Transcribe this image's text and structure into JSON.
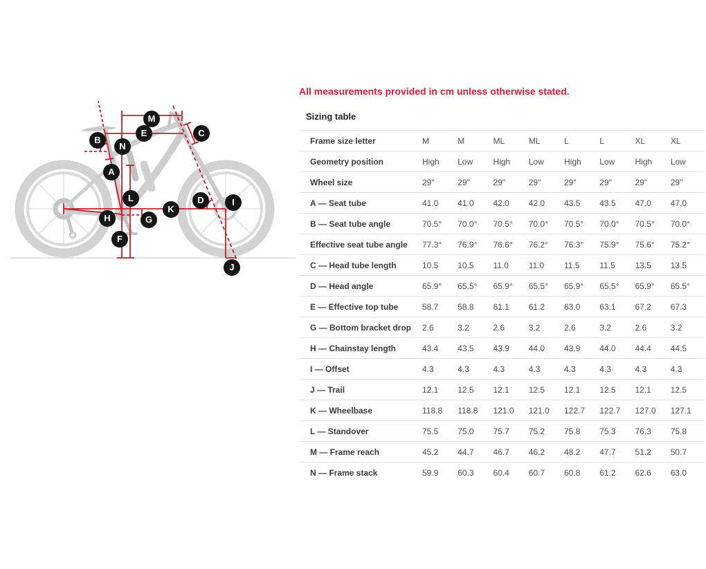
{
  "note": "All measurements provided in cm unless otherwise stated.",
  "colors": {
    "note_red": "#D02038",
    "diagram_line_red": "#C3202F",
    "badge_black": "#151515"
  },
  "diagram": {
    "badges": [
      "A",
      "B",
      "C",
      "D",
      "E",
      "F",
      "G",
      "H",
      "I",
      "J",
      "K",
      "L",
      "M",
      "N"
    ]
  },
  "sizing_table": {
    "title": "Sizing table",
    "rows": [
      {
        "label": "Frame size letter",
        "values": [
          "M",
          "M",
          "ML",
          "ML",
          "L",
          "L",
          "XL",
          "XL"
        ]
      },
      {
        "label": "Geometry position",
        "values": [
          "High",
          "Low",
          "High",
          "Low",
          "High",
          "Low",
          "High",
          "Low"
        ]
      },
      {
        "label": "Wheel size",
        "values": [
          "29\"",
          "29\"",
          "29\"",
          "29\"",
          "29\"",
          "29\"",
          "29\"",
          "29\""
        ]
      },
      {
        "label": "A — Seat tube",
        "values": [
          "41.0",
          "41.0",
          "42.0",
          "42.0",
          "43.5",
          "43.5",
          "47.0",
          "47.0"
        ]
      },
      {
        "label": "B — Seat tube angle",
        "values": [
          "70.5°",
          "70.0°",
          "70.5°",
          "70.0°",
          "70.5°",
          "70.0°",
          "70.5°",
          "70.0°"
        ]
      },
      {
        "label": "Effective seat tube angle",
        "values": [
          "77.3°",
          "76.9°",
          "76.6°",
          "76.2°",
          "76.3°",
          "75.9°",
          "75.6°",
          "75.2°"
        ]
      },
      {
        "label": "C — Head tube length",
        "values": [
          "10.5",
          "10.5",
          "11.0",
          "11.0",
          "11.5",
          "11.5",
          "13.5",
          "13.5"
        ]
      },
      {
        "label": "D — Head angle",
        "values": [
          "65.9°",
          "65.5°",
          "65.9°",
          "65.5°",
          "65.9°",
          "65.5°",
          "65.9°",
          "65.5°"
        ]
      },
      {
        "label": "E — Effective top tube",
        "values": [
          "58.7",
          "58.8",
          "61.1",
          "61.2",
          "63.0",
          "63.1",
          "67.2",
          "67.3"
        ]
      },
      {
        "label": "G — Bottom bracket drop",
        "values": [
          "2.6",
          "3.2",
          "2.6",
          "3.2",
          "2.6",
          "3.2",
          "2.6",
          "3.2"
        ]
      },
      {
        "label": "H — Chainstay length",
        "values": [
          "43.4",
          "43.5",
          "43.9",
          "44.0",
          "43.9",
          "44.0",
          "44.4",
          "44.5"
        ]
      },
      {
        "label": "I — Offset",
        "values": [
          "4.3",
          "4.3",
          "4.3",
          "4.3",
          "4.3",
          "4.3",
          "4.3",
          "4.3"
        ]
      },
      {
        "label": "J — Trail",
        "values": [
          "12.1",
          "12.5",
          "12.1",
          "12.5",
          "12.1",
          "12.5",
          "12.1",
          "12.5"
        ]
      },
      {
        "label": "K — Wheelbase",
        "values": [
          "118.8",
          "118.8",
          "121.0",
          "121.0",
          "122.7",
          "122.7",
          "127.0",
          "127.1"
        ]
      },
      {
        "label": "L — Standover",
        "values": [
          "75.5",
          "75.0",
          "75.7",
          "75.2",
          "75.8",
          "75.3",
          "76.3",
          "75.8"
        ]
      },
      {
        "label": "M — Frame reach",
        "values": [
          "45.2",
          "44.7",
          "46.7",
          "46.2",
          "48.2",
          "47.7",
          "51.2",
          "50.7"
        ]
      },
      {
        "label": "N — Frame stack",
        "values": [
          "59.9",
          "60.3",
          "60.4",
          "60.7",
          "60.8",
          "61.2",
          "62.6",
          "63.0"
        ]
      }
    ]
  }
}
